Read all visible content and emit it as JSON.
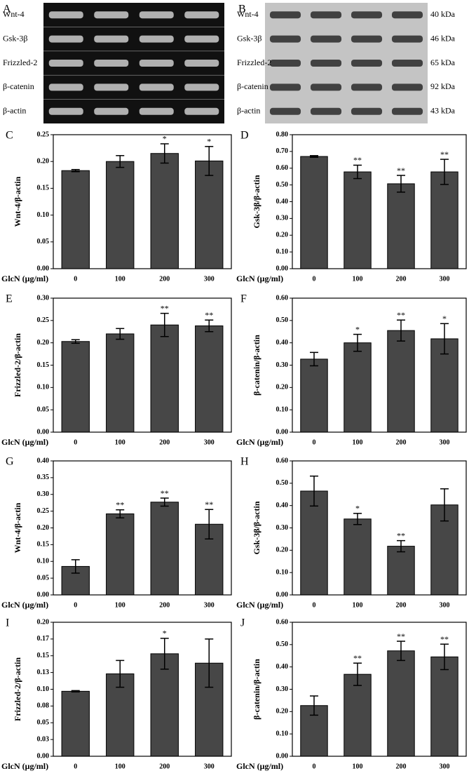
{
  "blots": [
    {
      "panel": "A",
      "rows": [
        "Wnt-4",
        "Gsk-3β",
        "Frizzled-2",
        "β-catenin",
        "β-actin"
      ]
    },
    {
      "panel": "B",
      "rows": [
        "Wnt-4",
        "Gsk-3β",
        "Frizzled-2",
        "β-catenin",
        "β-actin"
      ],
      "sizes": [
        "40 kDa",
        "46 kDa",
        "65 kDa",
        "92 kDa",
        "43 kDa"
      ]
    }
  ],
  "chart_data": [
    {
      "type": "bar",
      "panel": "C",
      "ylabel": "Wnt-4/β-actin",
      "xlabel": "GlcN  (μg/ml)",
      "categories": [
        "0",
        "100",
        "200",
        "300"
      ],
      "values": [
        0.183,
        0.2,
        0.215,
        0.201
      ],
      "errors": [
        0.002,
        0.011,
        0.018,
        0.027
      ],
      "significance": [
        null,
        null,
        "*",
        "*"
      ],
      "color": "#474747",
      "ylim": [
        0,
        0.25
      ],
      "yticks": [
        {
          "value": 0,
          "label": "0.00"
        },
        {
          "value": 0.05,
          "label": "0.05"
        },
        {
          "value": 0.1,
          "label": "0.10"
        },
        {
          "value": 0.15,
          "label": "0.15"
        },
        {
          "value": 0.2,
          "label": "0.20"
        },
        {
          "value": 0.25,
          "label": "0.25"
        }
      ]
    },
    {
      "type": "bar",
      "panel": "D",
      "ylabel": "Gsk-3β/β-actin",
      "xlabel": "GlcN  (μg/ml)",
      "categories": [
        "0",
        "100",
        "200",
        "300"
      ],
      "values": [
        0.67,
        0.578,
        0.507,
        0.578
      ],
      "errors": [
        0.005,
        0.04,
        0.05,
        0.075
      ],
      "significance": [
        null,
        "**",
        "**",
        "**"
      ],
      "color": "#474747",
      "ylim": [
        0,
        0.8
      ],
      "yticks": [
        {
          "value": 0,
          "label": "0.00"
        },
        {
          "value": 0.1,
          "label": "0.10"
        },
        {
          "value": 0.2,
          "label": "0.20"
        },
        {
          "value": 0.3,
          "label": "0.30"
        },
        {
          "value": 0.4,
          "label": "0.40"
        },
        {
          "value": 0.5,
          "label": "0.50"
        },
        {
          "value": 0.6,
          "label": "0.60"
        },
        {
          "value": 0.7,
          "label": "0.70"
        },
        {
          "value": 0.8,
          "label": "0.80"
        }
      ]
    },
    {
      "type": "bar",
      "panel": "E",
      "ylabel": "Frizzled-2/β-actin",
      "xlabel": "GlcN  (μg/ml)",
      "categories": [
        "0",
        "100",
        "200",
        "300"
      ],
      "values": [
        0.203,
        0.22,
        0.24,
        0.238
      ],
      "errors": [
        0.004,
        0.012,
        0.026,
        0.013
      ],
      "significance": [
        null,
        null,
        "**",
        "**"
      ],
      "color": "#474747",
      "ylim": [
        0,
        0.3
      ],
      "yticks": [
        {
          "value": 0,
          "label": "0.00"
        },
        {
          "value": 0.05,
          "label": "0.05"
        },
        {
          "value": 0.1,
          "label": "0.10"
        },
        {
          "value": 0.15,
          "label": "0.15"
        },
        {
          "value": 0.2,
          "label": "0.20"
        },
        {
          "value": 0.25,
          "label": "0.25"
        },
        {
          "value": 0.3,
          "label": "0.30"
        }
      ]
    },
    {
      "type": "bar",
      "panel": "F",
      "ylabel": "β-catenin/β-actin",
      "xlabel": "GlcN  (μg/ml)",
      "categories": [
        "0",
        "100",
        "200",
        "300"
      ],
      "values": [
        0.327,
        0.4,
        0.455,
        0.418
      ],
      "errors": [
        0.03,
        0.038,
        0.047,
        0.068
      ],
      "significance": [
        null,
        "*",
        "**",
        "*"
      ],
      "color": "#474747",
      "ylim": [
        0,
        0.6
      ],
      "yticks": [
        {
          "value": 0,
          "label": "0.00"
        },
        {
          "value": 0.1,
          "label": "0.10"
        },
        {
          "value": 0.2,
          "label": "0.20"
        },
        {
          "value": 0.3,
          "label": "0.30"
        },
        {
          "value": 0.4,
          "label": "0.40"
        },
        {
          "value": 0.5,
          "label": "0.50"
        },
        {
          "value": 0.6,
          "label": "0.60"
        }
      ]
    },
    {
      "type": "bar",
      "panel": "G",
      "ylabel": "Wnt-4/β-actin",
      "xlabel": "GlcN  (μg/ml)",
      "categories": [
        "0",
        "100",
        "200",
        "300"
      ],
      "values": [
        0.085,
        0.242,
        0.277,
        0.211
      ],
      "errors": [
        0.02,
        0.012,
        0.012,
        0.044
      ],
      "significance": [
        null,
        "**",
        "**",
        "**"
      ],
      "color": "#474747",
      "ylim": [
        0,
        0.4
      ],
      "yticks": [
        {
          "value": 0,
          "label": "0.00"
        },
        {
          "value": 0.05,
          "label": "0.05"
        },
        {
          "value": 0.1,
          "label": "0.10"
        },
        {
          "value": 0.15,
          "label": "0.15"
        },
        {
          "value": 0.2,
          "label": "0.20"
        },
        {
          "value": 0.25,
          "label": "0.25"
        },
        {
          "value": 0.3,
          "label": "0.30"
        },
        {
          "value": 0.35,
          "label": "0.35"
        },
        {
          "value": 0.4,
          "label": "0.40"
        }
      ]
    },
    {
      "type": "bar",
      "panel": "H",
      "ylabel": "Gsk-3β/β-actin",
      "xlabel": "GlcN  (μg/ml)",
      "categories": [
        "0",
        "100",
        "200",
        "300"
      ],
      "values": [
        0.465,
        0.34,
        0.218,
        0.403
      ],
      "errors": [
        0.067,
        0.025,
        0.025,
        0.072
      ],
      "significance": [
        null,
        "*",
        "**",
        null
      ],
      "color": "#474747",
      "ylim": [
        0,
        0.6
      ],
      "yticks": [
        {
          "value": 0,
          "label": "0.00"
        },
        {
          "value": 0.1,
          "label": "0.10"
        },
        {
          "value": 0.2,
          "label": "0.20"
        },
        {
          "value": 0.3,
          "label": "0.30"
        },
        {
          "value": 0.4,
          "label": "0.40"
        },
        {
          "value": 0.5,
          "label": "0.50"
        },
        {
          "value": 0.6,
          "label": "0.60"
        }
      ]
    },
    {
      "type": "bar",
      "panel": "I",
      "ylabel": "Frizzled-2/β-actin",
      "xlabel": "GlcN  (μg/ml)",
      "categories": [
        "0",
        "100",
        "200",
        "300"
      ],
      "values": [
        0.097,
        0.123,
        0.153,
        0.139
      ],
      "errors": [
        0.001,
        0.02,
        0.023,
        0.036
      ],
      "significance": [
        null,
        null,
        "*",
        null
      ],
      "color": "#474747",
      "ylim": [
        0,
        0.2
      ],
      "yticks": [
        {
          "value": 0,
          "label": "0.00"
        },
        {
          "value": 0.025,
          "label": "0.03"
        },
        {
          "value": 0.05,
          "label": "0.05"
        },
        {
          "value": 0.075,
          "label": "0.08"
        },
        {
          "value": 0.1,
          "label": "0.10"
        },
        {
          "value": 0.125,
          "label": "0.13"
        },
        {
          "value": 0.15,
          "label": "0.15"
        },
        {
          "value": 0.175,
          "label": "0.17"
        },
        {
          "value": 0.2,
          "label": "0.20"
        }
      ]
    },
    {
      "type": "bar",
      "panel": "J",
      "ylabel": "β-catenin/β-actin",
      "xlabel": "GlcN  (μg/ml)",
      "categories": [
        "0",
        "100",
        "200",
        "300"
      ],
      "values": [
        0.227,
        0.367,
        0.472,
        0.445
      ],
      "errors": [
        0.043,
        0.05,
        0.043,
        0.057
      ],
      "significance": [
        null,
        "**",
        "**",
        "**"
      ],
      "color": "#474747",
      "ylim": [
        0,
        0.6
      ],
      "yticks": [
        {
          "value": 0,
          "label": "0.00"
        },
        {
          "value": 0.1,
          "label": "0.10"
        },
        {
          "value": 0.2,
          "label": "0.20"
        },
        {
          "value": 0.3,
          "label": "0.30"
        },
        {
          "value": 0.4,
          "label": "0.40"
        },
        {
          "value": 0.5,
          "label": "0.50"
        },
        {
          "value": 0.6,
          "label": "0.60"
        }
      ]
    }
  ]
}
